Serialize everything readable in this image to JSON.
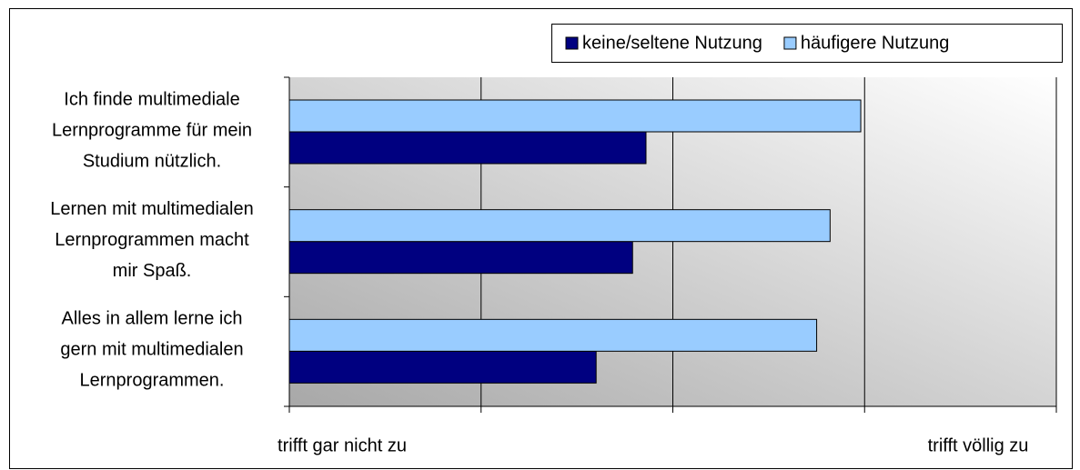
{
  "chart_data": {
    "type": "hbar",
    "categories": [
      [
        "Ich finde multimediale",
        "Lernprogramme für mein",
        "Studium nützlich."
      ],
      [
        "Lernen mit multimedialen",
        "Lernprogrammen macht",
        "mir Spaß."
      ],
      [
        "Alles in allem lerne ich",
        "gern mit multimedialen",
        "Lernprogrammen."
      ]
    ],
    "series": [
      {
        "name": "keine/seltene Nutzung",
        "color": "#000080",
        "values": [
          2.86,
          2.79,
          2.6
        ]
      },
      {
        "name": "häufigere Nutzung",
        "color": "#99ccff",
        "values": [
          3.98,
          3.82,
          3.75
        ]
      }
    ],
    "xlim": [
      1,
      5
    ],
    "xticks": [
      1,
      2,
      3,
      4,
      5
    ],
    "grid": true,
    "x_axis_labels": {
      "min": "trifft gar nicht zu",
      "max": "trifft völlig zu"
    },
    "legend": "top-right"
  }
}
